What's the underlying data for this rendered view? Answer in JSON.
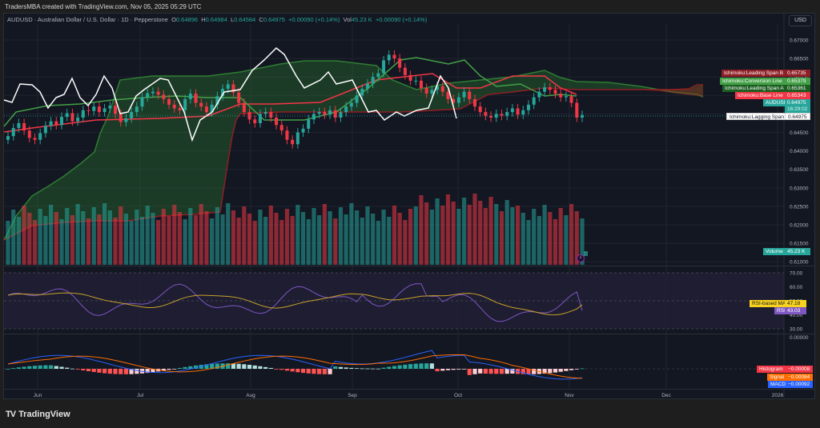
{
  "caption": "TradersMBA created with TradingView.com, Nov 05, 2025 05:29 UTC",
  "legend": {
    "symbol": "AUDUSD · Australian Dollar / U.S. Dollar · 1D · Pepperstone",
    "o_label": "O",
    "o": "0.64896",
    "h_label": "H",
    "h": "0.64984",
    "l_label": "L",
    "l": "0.64584",
    "c_label": "C",
    "c": "0.64975",
    "change": "+0.00090 (+0.14%)",
    "vol_label": "Vol",
    "vol": "45.23 K",
    "vol_change": "+0.00090 (+0.14%)"
  },
  "currency_button": "USD",
  "price_axis": [
    "0.67000",
    "0.66500",
    "0.66000",
    "0.65500",
    "0.65000",
    "0.64500",
    "0.64000",
    "0.63500",
    "0.63000",
    "0.62500",
    "0.62000",
    "0.61500",
    "0.61000"
  ],
  "rsi_axis": [
    "70.00",
    "60.00",
    "50.00",
    "40.00",
    "30.00"
  ],
  "macd_axis": [
    "0.00000"
  ],
  "x_axis": [
    "Jun",
    "Jul",
    "Aug",
    "Sep",
    "Oct",
    "Nov",
    "Dec",
    "2026"
  ],
  "tags": {
    "leading_span_b": {
      "label": "Ichimoku:Leading Span B",
      "value": "0.65735",
      "color": "#b71c1c"
    },
    "conversion_line": {
      "label": "Ichimoku:Conversion Line",
      "value": "0.65379",
      "color": "#43a047"
    },
    "leading_span_a": {
      "label": "Ichimoku:Leading Span A",
      "value": "0.65361",
      "color": "#1b5e20"
    },
    "base_line": {
      "label": "Ichimoku:Base Line",
      "value": "0.65343",
      "color": "#f23645"
    },
    "audusd": {
      "label": "AUDUSD",
      "value": "0.64975",
      "countdown": "16:29:02",
      "color": "#26a69a"
    },
    "lagging_span": {
      "label": "Ichimoku:Lagging Span",
      "value": "0.64975",
      "color": "#ffffff"
    },
    "volume": {
      "label": "Volume",
      "value": "45.23 K",
      "color": "#26a69a"
    },
    "rsi_ma": {
      "label": "RSI-based MA",
      "value": "47.18",
      "color": "#f7d21e"
    },
    "rsi": {
      "label": "RSI",
      "value": "43.03",
      "color": "#7e57c2"
    },
    "histogram": {
      "label": "Histogram",
      "value": "−0.00008",
      "color": "#f23645"
    },
    "signal": {
      "label": "Signal",
      "value": "−0.00084",
      "color": "#ff6d00"
    },
    "macd": {
      "label": "MACD",
      "value": "−0.00092",
      "color": "#2962ff"
    }
  },
  "brand": "TradingView",
  "colors": {
    "up": "#26a69a",
    "down": "#f23645",
    "bg": "#131722",
    "grid": "#1f2430"
  },
  "chart_data": [
    {
      "type": "candlestick",
      "title": "AUDUSD · Australian Dollar / U.S. Dollar · 1D · Pepperstone",
      "xlabel": "",
      "ylabel": "USD",
      "x_ticks": [
        "Jun",
        "Jul",
        "Aug",
        "Sep",
        "Oct",
        "Nov",
        "Dec",
        "2026"
      ],
      "ylim": [
        0.61,
        0.671
      ],
      "grid": true,
      "last": {
        "open": 0.64896,
        "high": 0.64984,
        "low": 0.64584,
        "close": 0.64975
      },
      "series": [
        {
          "name": "Ichimoku:Leading Span B",
          "last": 0.65735
        },
        {
          "name": "Ichimoku:Conversion Line",
          "last": 0.65379
        },
        {
          "name": "Ichimoku:Leading Span A",
          "last": 0.65361
        },
        {
          "name": "Ichimoku:Base Line",
          "last": 0.65343
        },
        {
          "name": "Ichimoku:Lagging Span",
          "last": 0.64975
        }
      ],
      "closes_approx": [
        0.644,
        0.6462,
        0.6475,
        0.6455,
        0.6435,
        0.643,
        0.6448,
        0.6468,
        0.648,
        0.647,
        0.6492,
        0.6502,
        0.648,
        0.649,
        0.651,
        0.6508,
        0.652,
        0.6505,
        0.6515,
        0.6522,
        0.65,
        0.6478,
        0.6488,
        0.6505,
        0.652,
        0.6545,
        0.6556,
        0.656,
        0.6552,
        0.654,
        0.6525,
        0.6515,
        0.651,
        0.654,
        0.6555,
        0.653,
        0.652,
        0.6505,
        0.6525,
        0.6548,
        0.6568,
        0.658,
        0.6558,
        0.653,
        0.6505,
        0.6485,
        0.6475,
        0.65,
        0.6505,
        0.649,
        0.647,
        0.6455,
        0.643,
        0.6418,
        0.645,
        0.646,
        0.6485,
        0.65,
        0.6505,
        0.6498,
        0.651,
        0.649,
        0.6505,
        0.652,
        0.653,
        0.655,
        0.6568,
        0.6582,
        0.66,
        0.661,
        0.6645,
        0.666,
        0.665,
        0.6625,
        0.6605,
        0.659,
        0.659,
        0.657,
        0.6555,
        0.6565,
        0.6575,
        0.656,
        0.654,
        0.653,
        0.6545,
        0.656,
        0.654,
        0.652,
        0.6505,
        0.6495,
        0.649,
        0.65,
        0.6495,
        0.6505,
        0.6515,
        0.6498,
        0.651,
        0.6525,
        0.6545,
        0.656,
        0.6572,
        0.6565,
        0.6555,
        0.6545,
        0.6548,
        0.653,
        0.649,
        0.6497
      ]
    },
    {
      "type": "bar",
      "title": "Volume",
      "last": "45.23 K"
    },
    {
      "type": "line",
      "title": "RSI",
      "ylim": [
        30,
        70
      ],
      "series": [
        {
          "name": "RSI",
          "last": 43.03
        },
        {
          "name": "RSI-based MA",
          "last": 47.18
        }
      ],
      "bands": [
        70,
        50,
        30
      ]
    },
    {
      "type": "bar",
      "title": "MACD",
      "series": [
        {
          "name": "Histogram",
          "last": -8e-05
        },
        {
          "name": "Signal",
          "last": -0.00084
        },
        {
          "name": "MACD",
          "last": -0.00092
        }
      ]
    }
  ]
}
